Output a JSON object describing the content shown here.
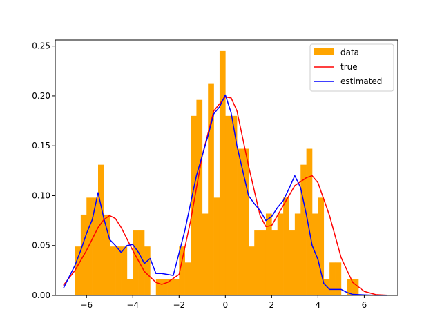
{
  "chart_data": {
    "type": "bar",
    "xlim": [
      -7.35,
      7.45
    ],
    "ylim": [
      0,
      0.256
    ],
    "xticks": [
      -6,
      -4,
      -2,
      0,
      2,
      4,
      6
    ],
    "xtick_labels": [
      "−6",
      "−4",
      "−2",
      "0",
      "2",
      "4",
      "6"
    ],
    "yticks": [
      0.0,
      0.05,
      0.1,
      0.15,
      0.2,
      0.25
    ],
    "ytick_labels": [
      "0.00",
      "0.05",
      "0.10",
      "0.15",
      "0.20",
      "0.25"
    ],
    "legend_position": "top-right",
    "histogram": {
      "name": "data",
      "color": "#ffa500",
      "bin_width": 0.25,
      "bin_left_edges": [
        -6.5,
        -6.25,
        -6.0,
        -5.75,
        -5.5,
        -5.25,
        -5.0,
        -4.75,
        -4.5,
        -4.25,
        -4.0,
        -3.75,
        -3.5,
        -3.25,
        -3.0,
        -2.75,
        -2.5,
        -2.25,
        -2.0,
        -1.75,
        -1.5,
        -1.25,
        -1.0,
        -0.75,
        -0.5,
        -0.25,
        0.0,
        0.25,
        0.5,
        0.75,
        1.0,
        1.25,
        1.5,
        1.75,
        2.0,
        2.25,
        2.5,
        2.75,
        3.0,
        3.25,
        3.5,
        3.75,
        4.0,
        4.25,
        4.5,
        4.75,
        5.0,
        5.25,
        5.5,
        5.75
      ],
      "values": [
        0.049,
        0.081,
        0.098,
        0.098,
        0.131,
        0.081,
        0.049,
        0.049,
        0.049,
        0.016,
        0.065,
        0.065,
        0.049,
        0.0,
        0.016,
        0.016,
        0.016,
        0.016,
        0.049,
        0.033,
        0.18,
        0.196,
        0.082,
        0.212,
        0.098,
        0.245,
        0.18,
        0.18,
        0.147,
        0.147,
        0.049,
        0.065,
        0.065,
        0.082,
        0.065,
        0.082,
        0.098,
        0.065,
        0.082,
        0.131,
        0.147,
        0.082,
        0.098,
        0.016,
        0.033,
        0.033,
        0.0,
        0.016,
        0.016,
        0.0
      ]
    },
    "series": [
      {
        "name": "true",
        "color": "#ff0000",
        "x": [
          -7.0,
          -6.5,
          -6.0,
          -5.5,
          -5.25,
          -5.0,
          -4.75,
          -4.5,
          -4.0,
          -3.5,
          -3.0,
          -2.75,
          -2.5,
          -2.0,
          -1.5,
          -1.0,
          -0.5,
          0.0,
          0.25,
          0.5,
          1.0,
          1.5,
          1.75,
          2.0,
          2.5,
          3.0,
          3.5,
          3.75,
          4.0,
          4.5,
          5.0,
          5.5,
          6.0,
          6.5,
          7.0
        ],
        "y": [
          0.01,
          0.025,
          0.045,
          0.068,
          0.076,
          0.08,
          0.077,
          0.068,
          0.045,
          0.024,
          0.013,
          0.011,
          0.013,
          0.021,
          0.075,
          0.14,
          0.185,
          0.199,
          0.198,
          0.185,
          0.13,
          0.08,
          0.069,
          0.07,
          0.09,
          0.11,
          0.118,
          0.12,
          0.113,
          0.08,
          0.038,
          0.013,
          0.004,
          0.0008,
          0.0002
        ]
      },
      {
        "name": "estimated",
        "color": "#0000ff",
        "x": [
          -7.0,
          -6.5,
          -6.25,
          -6.0,
          -5.75,
          -5.5,
          -5.25,
          -5.0,
          -4.75,
          -4.5,
          -4.25,
          -4.0,
          -3.75,
          -3.5,
          -3.25,
          -3.0,
          -2.75,
          -2.25,
          -1.75,
          -1.25,
          -0.75,
          -0.5,
          -0.25,
          0.0,
          0.25,
          0.5,
          0.75,
          1.0,
          1.25,
          1.5,
          1.75,
          2.0,
          2.25,
          2.5,
          2.75,
          3.0,
          3.25,
          3.5,
          3.75,
          4.0,
          4.25,
          4.5,
          4.75,
          5.0,
          5.25,
          5.5,
          6.0,
          6.5,
          7.0
        ],
        "y": [
          0.007,
          0.03,
          0.045,
          0.062,
          0.076,
          0.103,
          0.077,
          0.056,
          0.05,
          0.043,
          0.05,
          0.051,
          0.043,
          0.032,
          0.037,
          0.022,
          0.022,
          0.02,
          0.065,
          0.12,
          0.16,
          0.182,
          0.189,
          0.201,
          0.183,
          0.15,
          0.125,
          0.1,
          0.092,
          0.085,
          0.075,
          0.079,
          0.088,
          0.095,
          0.107,
          0.12,
          0.108,
          0.081,
          0.05,
          0.036,
          0.012,
          0.006,
          0.006,
          0.006,
          0.003,
          0.001,
          0.0005,
          0.0001,
          0.0001
        ]
      }
    ],
    "legend": [
      "data",
      "true",
      "estimated"
    ]
  }
}
